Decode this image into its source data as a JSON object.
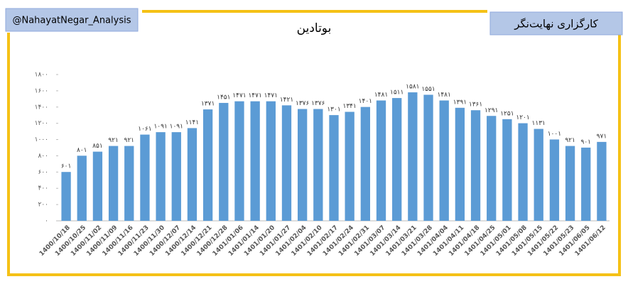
{
  "header": {
    "left": "@NahayatNegar_Analysis",
    "right": "کارگزاری نهایت‌نگر"
  },
  "chart_data": {
    "type": "bar",
    "title": "بوتادین",
    "categories": [
      "1400/10/18",
      "1400/10/25",
      "1400/11/02",
      "1400/11/09",
      "1400/11/16",
      "1400/11/23",
      "1400/11/30",
      "1400/12/07",
      "1400/12/14",
      "1400/12/21",
      "1400/12/28",
      "1401/01/06",
      "1401/01/14",
      "1401/01/20",
      "1401/01/27",
      "1401/02/04",
      "1401/02/10",
      "1401/02/17",
      "1401/02/24",
      "1401/02/31",
      "1401/03/07",
      "1401/03/14",
      "1401/03/21",
      "1401/03/28",
      "1401/04/04",
      "1401/04/11",
      "1401/04/18",
      "1401/04/25",
      "1401/05/01",
      "1401/05/08",
      "1401/05/15",
      "1401/05/22",
      "1401/05/23",
      "1401/06/05",
      "1401/06/12"
    ],
    "values": [
      601,
      801,
      851,
      921,
      921,
      1061,
      1091,
      1091,
      1141,
      1371,
      1451,
      1471,
      1471,
      1471,
      1421,
      1376,
      1376,
      1301,
      1341,
      1401,
      1481,
      1511,
      1581,
      1551,
      1481,
      1391,
      1361,
      1291,
      1251,
      1201,
      1131,
      1001,
      921,
      901,
      971
    ],
    "value_labels": [
      "۶۰۱",
      "۸۰۱",
      "۸۵۱",
      "۹۲۱",
      "۹۲۱",
      "۱۰۶۱",
      "۱۰۹۱",
      "۱۰۹۱",
      "۱۱۴۱",
      "۱۳۷۱",
      "۱۴۵۱",
      "۱۴۷۱",
      "۱۴۷۱",
      "۱۴۷۱",
      "۱۴۲۱",
      "۱۳۷۶",
      "۱۳۷۶",
      "۱۳۰۱",
      "۱۳۴۱",
      "۱۴۰۱",
      "۱۴۸۱",
      "۱۵۱۱",
      "۱۵۸۱",
      "۱۵۵۱",
      "۱۴۸۱",
      "۱۳۹۱",
      "۱۳۶۱",
      "۱۲۹۱",
      "۱۲۵۱",
      "۱۲۰۱",
      "۱۱۳۱",
      "۱۰۰۱",
      "۹۲۱",
      "۹۰۱",
      "۹۷۱"
    ],
    "color": "#5b9bd5",
    "ylim": [
      0,
      1800
    ],
    "yticks": [
      {
        "value": 0,
        "label": "۰"
      },
      {
        "value": 200,
        "label": "۲۰۰"
      },
      {
        "value": 400,
        "label": "۴۰۰"
      },
      {
        "value": 600,
        "label": "۶۰۰"
      },
      {
        "value": 800,
        "label": "۸۰۰"
      },
      {
        "value": 1000,
        "label": "۱۰۰۰"
      },
      {
        "value": 1200,
        "label": "۱۲۰۰"
      },
      {
        "value": 1400,
        "label": "۱۴۰۰"
      },
      {
        "value": 1600,
        "label": "۱۶۰۰"
      },
      {
        "value": 1800,
        "label": "۱۸۰۰"
      }
    ],
    "grid": false
  }
}
